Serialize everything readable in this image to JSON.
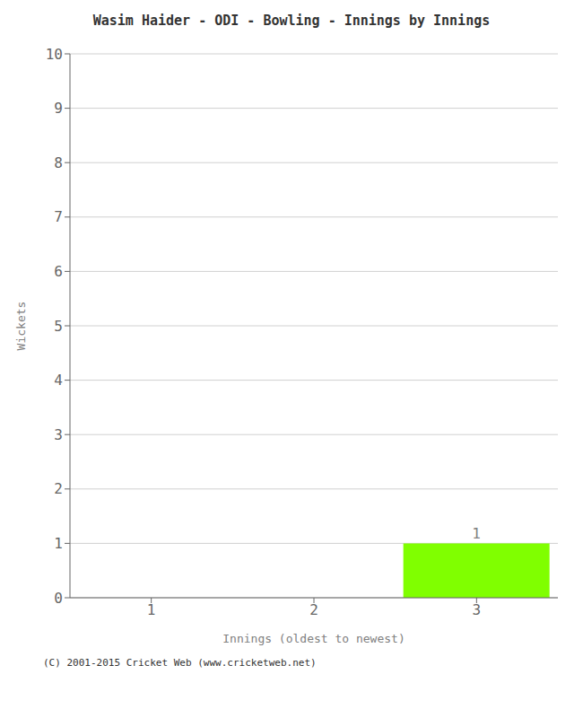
{
  "chart_data": {
    "type": "bar",
    "title": "Wasim Haider - ODI - Bowling - Innings by Innings",
    "x": [
      1,
      2,
      3
    ],
    "values": [
      0,
      0,
      1
    ],
    "color": "#80ff00",
    "xlabel": "Innings (oldest to newest)",
    "ylabel": "Wickets",
    "xlim": [
      0.5,
      3.5
    ],
    "xticks": [
      1,
      2,
      3
    ],
    "ylim": [
      0,
      10
    ],
    "yticks": [
      0,
      1,
      2,
      3,
      4,
      5,
      6,
      7,
      8,
      9,
      10
    ],
    "grid": true,
    "data_labels": true,
    "annotations": [
      "(C) 2001-2015 Cricket Web (www.cricketweb.net)"
    ]
  }
}
